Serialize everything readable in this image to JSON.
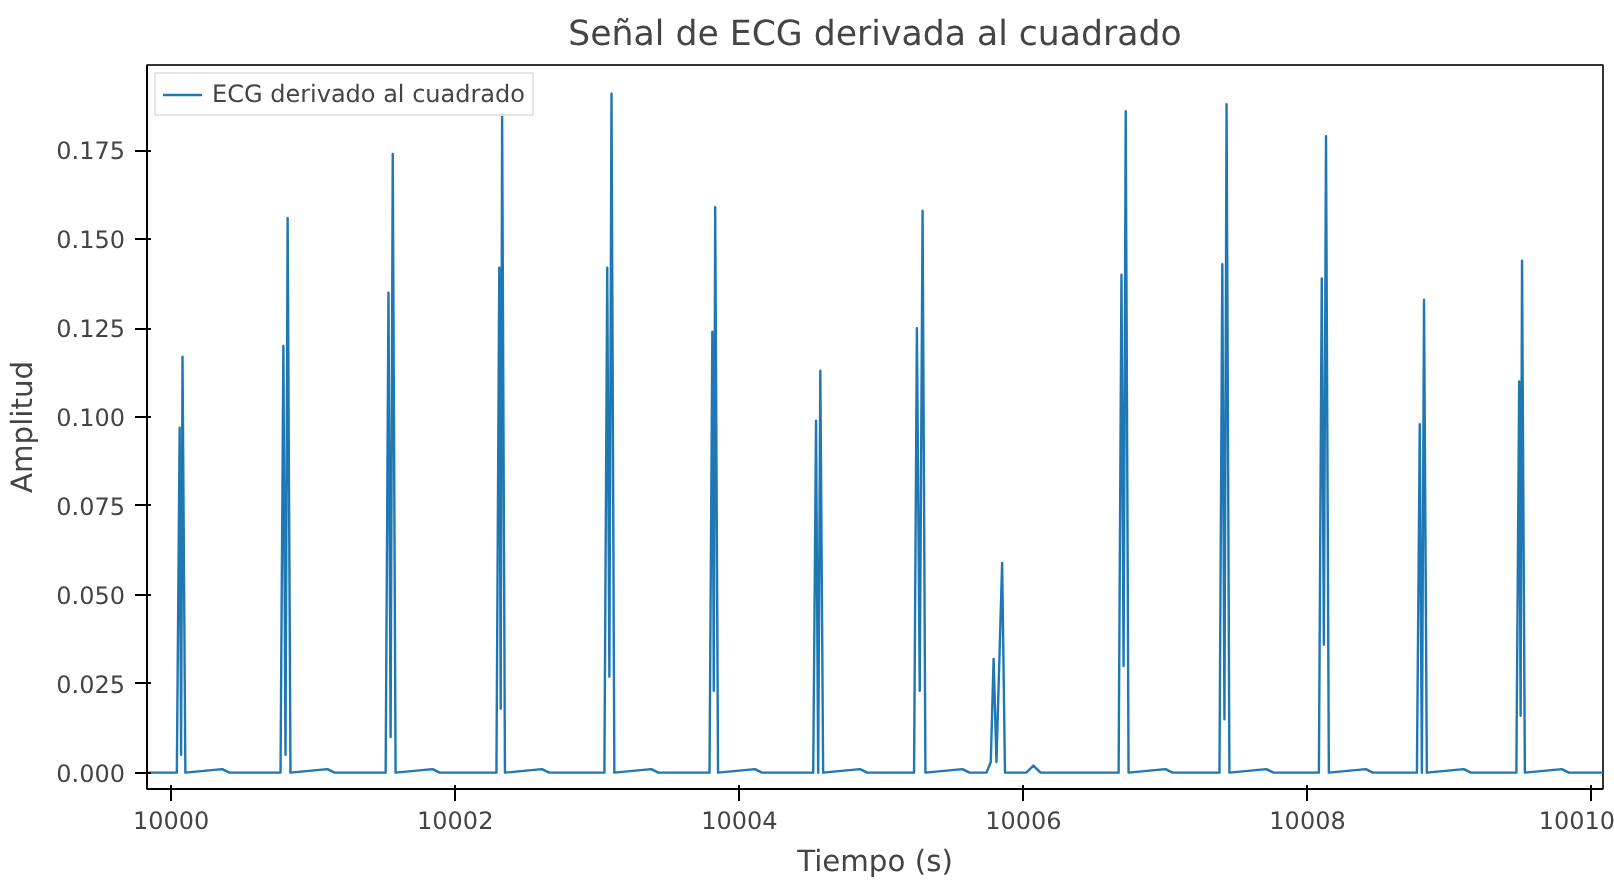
{
  "chart_data": {
    "type": "line",
    "title": "Señal de ECG derivada al cuadrado",
    "xlabel": "Tiempo (s)",
    "ylabel": "Amplitud",
    "xlim": [
      9999.83,
      10010.08
    ],
    "ylim": [
      -0.0046,
      0.199
    ],
    "xticks": [
      10000,
      10002,
      10004,
      10006,
      10008,
      10010
    ],
    "yticks": [
      {
        "value": 0,
        "label": "0.000"
      },
      {
        "value": 0.025,
        "label": "0.025"
      },
      {
        "value": 0.05,
        "label": "0.050"
      },
      {
        "value": 0.075,
        "label": "0.075"
      },
      {
        "value": 0.1,
        "label": "0.100"
      },
      {
        "value": 0.125,
        "label": "0.125"
      },
      {
        "value": 0.15,
        "label": "0.150"
      },
      {
        "value": 0.175,
        "label": "0.175"
      }
    ],
    "grid": false,
    "legend": "top left",
    "series": [
      {
        "name": "ECG derivado al cuadrado",
        "color": "#1f77b4",
        "x": [
          9999.83,
          10000.04,
          10000.06,
          10000.07,
          10000.08,
          10000.1,
          10000.36,
          10000.41,
          10000.77,
          10000.79,
          10000.805,
          10000.82,
          10000.84,
          10001.1,
          10001.15,
          10001.51,
          10001.53,
          10001.545,
          10001.56,
          10001.58,
          10001.84,
          10001.89,
          10002.29,
          10002.31,
          10002.32,
          10002.33,
          10002.35,
          10002.61,
          10002.66,
          10003.05,
          10003.07,
          10003.085,
          10003.1,
          10003.12,
          10003.38,
          10003.43,
          10003.79,
          10003.81,
          10003.82,
          10003.83,
          10003.85,
          10004.11,
          10004.16,
          10004.52,
          10004.54,
          10004.555,
          10004.57,
          10004.59,
          10004.85,
          10004.9,
          10005.23,
          10005.25,
          10005.27,
          10005.29,
          10005.31,
          10005.57,
          10005.62,
          10005.74,
          10005.77,
          10005.79,
          10005.81,
          10005.85,
          10005.87,
          10006.02,
          10006.07,
          10006.12,
          10006.67,
          10006.69,
          10006.705,
          10006.72,
          10006.74,
          10007.0,
          10007.05,
          10007.38,
          10007.4,
          10007.415,
          10007.43,
          10007.45,
          10007.71,
          10007.76,
          10008.08,
          10008.1,
          10008.115,
          10008.13,
          10008.15,
          10008.41,
          10008.46,
          10008.77,
          10008.79,
          10008.805,
          10008.82,
          10008.84,
          10009.1,
          10009.15,
          10009.47,
          10009.49,
          10009.5,
          10009.51,
          10009.53,
          10009.79,
          10009.84,
          10010.08
        ],
        "values": [
          0,
          0,
          0.097,
          0.005,
          0.117,
          0,
          0.001,
          0,
          0,
          0.12,
          0.005,
          0.156,
          0,
          0.001,
          0,
          0,
          0.135,
          0.01,
          0.174,
          0,
          0.001,
          0,
          0,
          0.142,
          0.018,
          0.185,
          0,
          0.001,
          0,
          0,
          0.142,
          0.027,
          0.191,
          0,
          0.001,
          0,
          0,
          0.124,
          0.023,
          0.159,
          0,
          0.001,
          0,
          0,
          0.099,
          0,
          0.113,
          0,
          0.001,
          0,
          0,
          0.125,
          0.023,
          0.158,
          0,
          0.001,
          0,
          0,
          0.003,
          0.032,
          0.003,
          0.059,
          0,
          0,
          0.002,
          0,
          0,
          0.14,
          0.03,
          0.186,
          0,
          0.001,
          0,
          0,
          0.143,
          0.015,
          0.188,
          0,
          0.001,
          0,
          0,
          0.139,
          0.036,
          0.179,
          0,
          0.001,
          0,
          0,
          0.098,
          0,
          0.133,
          0,
          0.001,
          0,
          0,
          0.11,
          0.016,
          0.144,
          0,
          0.001,
          0,
          0
        ]
      }
    ]
  }
}
